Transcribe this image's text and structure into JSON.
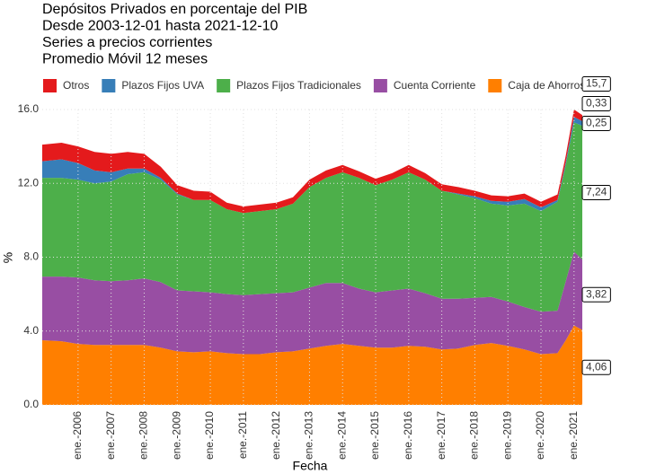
{
  "chart_data": {
    "type": "stacked_area",
    "title_lines": [
      "Depósitos Privados en porcentaje del PIB",
      "Desde 2003-12-01 hasta 2021-12-10",
      "Series a precios corrientes",
      "Promedio Móvil 12 meses"
    ],
    "x_label": "Fecha",
    "y_label": "%",
    "x": [
      "2004-12",
      "2005-07",
      "2006-01",
      "2006-07",
      "2007-01",
      "2007-07",
      "2008-01",
      "2008-07",
      "2009-01",
      "2009-07",
      "2010-01",
      "2010-07",
      "2011-01",
      "2011-07",
      "2012-01",
      "2012-07",
      "2013-01",
      "2013-07",
      "2014-01",
      "2014-07",
      "2015-01",
      "2015-07",
      "2016-01",
      "2016-07",
      "2017-01",
      "2017-07",
      "2018-01",
      "2018-07",
      "2019-01",
      "2019-07",
      "2020-01",
      "2020-07",
      "2020-10",
      "2021-01",
      "2021-04"
    ],
    "xlim": [
      "2004-12",
      "2021-04"
    ],
    "xticks": [
      {
        "value": "2006-01",
        "label": "ene.-2006"
      },
      {
        "value": "2007-01",
        "label": "ene.-2007"
      },
      {
        "value": "2008-01",
        "label": "ene.-2008"
      },
      {
        "value": "2009-01",
        "label": "ene.-2009"
      },
      {
        "value": "2010-01",
        "label": "ene.-2010"
      },
      {
        "value": "2011-01",
        "label": "ene.-2011"
      },
      {
        "value": "2012-01",
        "label": "ene.-2012"
      },
      {
        "value": "2013-01",
        "label": "ene.-2013"
      },
      {
        "value": "2014-01",
        "label": "ene.-2014"
      },
      {
        "value": "2015-01",
        "label": "ene.-2015"
      },
      {
        "value": "2016-01",
        "label": "ene.-2016"
      },
      {
        "value": "2017-01",
        "label": "ene.-2017"
      },
      {
        "value": "2018-01",
        "label": "ene.-2018"
      },
      {
        "value": "2019-01",
        "label": "ene.-2019"
      },
      {
        "value": "2020-01",
        "label": "ene.-2020"
      },
      {
        "value": "2021-01",
        "label": "ene.-2021"
      }
    ],
    "ylim": [
      0,
      16
    ],
    "yticks": [
      {
        "value": 0,
        "label": "0.0"
      },
      {
        "value": 4,
        "label": "4.0"
      },
      {
        "value": 8,
        "label": "8.0"
      },
      {
        "value": 12,
        "label": "12.0"
      },
      {
        "value": 16,
        "label": "16.0"
      }
    ],
    "grid": true,
    "legend_order": [
      4,
      3,
      2,
      1,
      0
    ],
    "series": [
      {
        "name": "Caja de Ahorros",
        "color": "#ff7f00",
        "values": [
          3.5,
          3.45,
          3.3,
          3.25,
          3.25,
          3.25,
          3.25,
          3.1,
          2.9,
          2.85,
          2.9,
          2.8,
          2.75,
          2.75,
          2.85,
          2.9,
          3.05,
          3.2,
          3.3,
          3.2,
          3.1,
          3.1,
          3.2,
          3.15,
          3.0,
          3.05,
          3.25,
          3.35,
          3.2,
          3.0,
          2.75,
          2.8,
          3.5,
          4.3,
          4.06
        ],
        "value_labels": [
          null,
          null,
          null,
          null,
          null,
          null,
          null,
          null,
          null,
          null,
          null,
          null,
          null,
          null,
          null,
          null,
          null,
          null,
          null,
          null,
          null,
          null,
          null,
          null,
          null,
          null,
          null,
          null,
          null,
          null,
          null,
          null,
          null,
          null,
          "4,06"
        ]
      },
      {
        "name": "Cuenta Corriente",
        "color": "#984ea3",
        "values": [
          3.45,
          3.5,
          3.6,
          3.5,
          3.45,
          3.5,
          3.6,
          3.55,
          3.3,
          3.3,
          3.2,
          3.2,
          3.2,
          3.25,
          3.2,
          3.2,
          3.3,
          3.4,
          3.3,
          3.1,
          3.0,
          3.1,
          3.1,
          2.9,
          2.75,
          2.7,
          2.55,
          2.5,
          2.4,
          2.3,
          2.3,
          2.3,
          3.2,
          4.0,
          3.82
        ],
        "value_labels": [
          null,
          null,
          null,
          null,
          null,
          null,
          null,
          null,
          null,
          null,
          null,
          null,
          null,
          null,
          null,
          null,
          null,
          null,
          null,
          null,
          null,
          null,
          null,
          null,
          null,
          null,
          null,
          null,
          null,
          null,
          null,
          null,
          null,
          null,
          "3,82"
        ]
      },
      {
        "name": "Plazos Fijos Tradicionales",
        "color": "#4daf4a",
        "values": [
          5.35,
          5.35,
          5.3,
          5.25,
          5.4,
          5.75,
          5.75,
          5.55,
          5.2,
          4.95,
          5.0,
          4.6,
          4.45,
          4.5,
          4.55,
          4.8,
          5.45,
          5.7,
          6.0,
          6.0,
          5.8,
          6.0,
          6.3,
          6.15,
          5.85,
          5.65,
          5.4,
          5.05,
          5.2,
          5.6,
          5.45,
          5.9,
          6.3,
          7.0,
          7.24
        ],
        "value_labels": [
          null,
          null,
          null,
          null,
          null,
          null,
          null,
          null,
          null,
          null,
          null,
          null,
          null,
          null,
          null,
          null,
          null,
          null,
          null,
          null,
          null,
          null,
          null,
          null,
          null,
          null,
          null,
          null,
          null,
          null,
          null,
          null,
          null,
          null,
          "7,24"
        ]
      },
      {
        "name": "Plazos Fijos UVA",
        "color": "#377eb8",
        "values": [
          0.9,
          1.0,
          0.9,
          0.7,
          0.5,
          0.3,
          0.2,
          0.1,
          0.05,
          0,
          0,
          0,
          0,
          0,
          0,
          0,
          0,
          0,
          0,
          0,
          0,
          0,
          0,
          0,
          0,
          0.05,
          0.1,
          0.15,
          0.2,
          0.25,
          0.2,
          0.1,
          0.15,
          0.3,
          0.25
        ],
        "value_labels": [
          null,
          null,
          null,
          null,
          null,
          null,
          null,
          null,
          null,
          null,
          null,
          null,
          null,
          null,
          null,
          null,
          null,
          null,
          null,
          null,
          null,
          null,
          null,
          null,
          null,
          null,
          null,
          null,
          null,
          null,
          null,
          null,
          null,
          null,
          "0,25"
        ]
      },
      {
        "name": "Otros",
        "color": "#e41a1c",
        "values": [
          0.9,
          0.9,
          0.9,
          1.0,
          1.0,
          0.9,
          0.8,
          0.6,
          0.45,
          0.5,
          0.45,
          0.35,
          0.35,
          0.35,
          0.35,
          0.35,
          0.4,
          0.4,
          0.4,
          0.35,
          0.35,
          0.35,
          0.4,
          0.35,
          0.35,
          0.35,
          0.3,
          0.3,
          0.3,
          0.3,
          0.3,
          0.3,
          0.35,
          0.4,
          0.33
        ],
        "value_labels": [
          null,
          null,
          null,
          null,
          null,
          null,
          null,
          null,
          null,
          null,
          null,
          null,
          null,
          null,
          null,
          null,
          null,
          null,
          null,
          null,
          null,
          null,
          null,
          null,
          null,
          null,
          null,
          null,
          null,
          null,
          null,
          null,
          null,
          null,
          "0,33"
        ]
      }
    ],
    "end_total": {
      "value": 15.7,
      "label": "15,7"
    }
  }
}
